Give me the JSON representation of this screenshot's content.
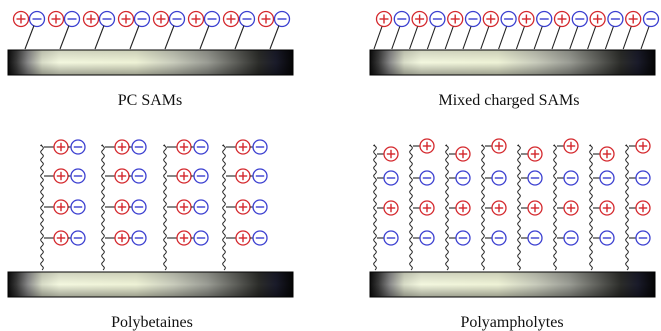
{
  "captions": {
    "pc_sams": "PC SAMs",
    "mixed_sams": "Mixed charged SAMs",
    "polybetaines": "Polybetaines",
    "polyampholytes": "Polyampholytes"
  },
  "charges": {
    "positive": "+",
    "negative": "−"
  },
  "colors": {
    "positive": "#d4282d",
    "negative": "#3b3fd0",
    "substrate_dark": "#0c0c0c",
    "substrate_light": "#f2f6dc",
    "chain": "#222222"
  }
}
